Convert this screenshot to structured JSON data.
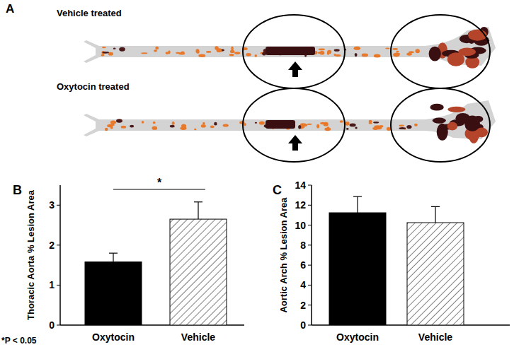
{
  "chart_data": [
    {
      "type": "bar",
      "y_label": "Thoracic Aorta % Lesion Area",
      "categories": [
        "Oxytocin",
        "Vehicle"
      ],
      "values": [
        1.58,
        2.65
      ],
      "errors": [
        0.22,
        0.43
      ],
      "colors": [
        "#000000",
        "#ffffff"
      ],
      "ylim": [
        0,
        3.5
      ],
      "yticks": [
        0,
        1,
        2,
        3
      ],
      "grid": false,
      "annotation": "*"
    },
    {
      "type": "bar",
      "y_label": "Aortic Arch % Lesion Area",
      "categories": [
        "Oxytocin",
        "Vehicle"
      ],
      "values": [
        11.24,
        10.25
      ],
      "errors": [
        1.62,
        1.6
      ],
      "colors": [
        "#000000",
        "#ffffff"
      ],
      "ylim": [
        0,
        14
      ],
      "yticks": [
        0,
        2,
        4,
        6,
        8,
        10,
        12,
        14
      ],
      "grid": false
    }
  ],
  "figure": {
    "panel_labels": [
      "A",
      "B",
      "C"
    ],
    "panel_a": {
      "rows": [
        "Vehicle treated",
        "Oxytocin treated"
      ]
    },
    "footnote": "*P < 0.05"
  }
}
